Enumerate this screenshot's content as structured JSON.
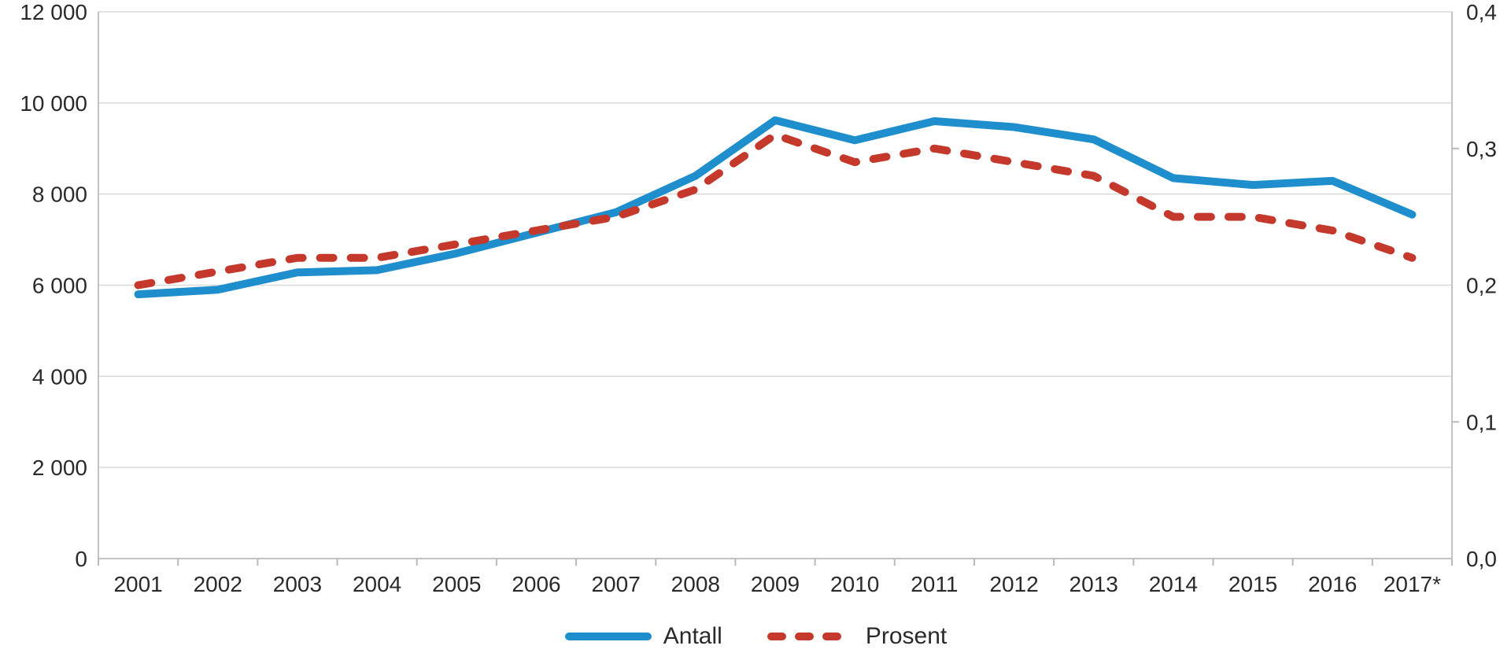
{
  "chart_data": {
    "type": "line",
    "title": "",
    "xlabel": "",
    "ylabel_left": "",
    "ylabel_right": "",
    "grid": true,
    "legend_position": "bottom",
    "categories": [
      "2001",
      "2002",
      "2003",
      "2004",
      "2005",
      "2006",
      "2007",
      "2008",
      "2009",
      "2010",
      "2011",
      "2012",
      "2013",
      "2014",
      "2015",
      "2016",
      "2017*"
    ],
    "series": [
      {
        "name": "Antall",
        "axis": "left",
        "style": "solid",
        "color": "#1f8ecd",
        "values": [
          5800,
          5900,
          6280,
          6330,
          6700,
          7150,
          7600,
          8400,
          9620,
          9180,
          9600,
          9470,
          9200,
          8350,
          8200,
          8290,
          7550
        ]
      },
      {
        "name": "Prosent",
        "axis": "right",
        "style": "dashed",
        "color": "#c4392b",
        "values": [
          0.2,
          0.21,
          0.22,
          0.22,
          0.23,
          0.24,
          0.25,
          0.27,
          0.31,
          0.29,
          0.3,
          0.29,
          0.28,
          0.25,
          0.25,
          0.24,
          0.22
        ]
      }
    ],
    "left_axis": {
      "min": 0,
      "max": 12000,
      "tick_values": [
        0,
        2000,
        4000,
        6000,
        8000,
        10000,
        12000
      ],
      "tick_labels": [
        "0",
        "2 000",
        "4 000",
        "6 000",
        "8 000",
        "10 000",
        "12 000"
      ]
    },
    "right_axis": {
      "min": 0,
      "max": 0.4,
      "tick_values": [
        0,
        0.1,
        0.2,
        0.3,
        0.4
      ],
      "tick_labels": [
        "0,0",
        "0,1",
        "0,2",
        "0,3",
        "0,4"
      ],
      "minor_tick_values": [
        0.1,
        0.3
      ]
    }
  },
  "colors": {
    "background": "#ffffff",
    "gridline": "#d9d9d9",
    "axis": "#c3c3c3",
    "text": "#2a2a2a",
    "antall_line": "#1f8ecd",
    "prosent_line": "#c4392b"
  }
}
